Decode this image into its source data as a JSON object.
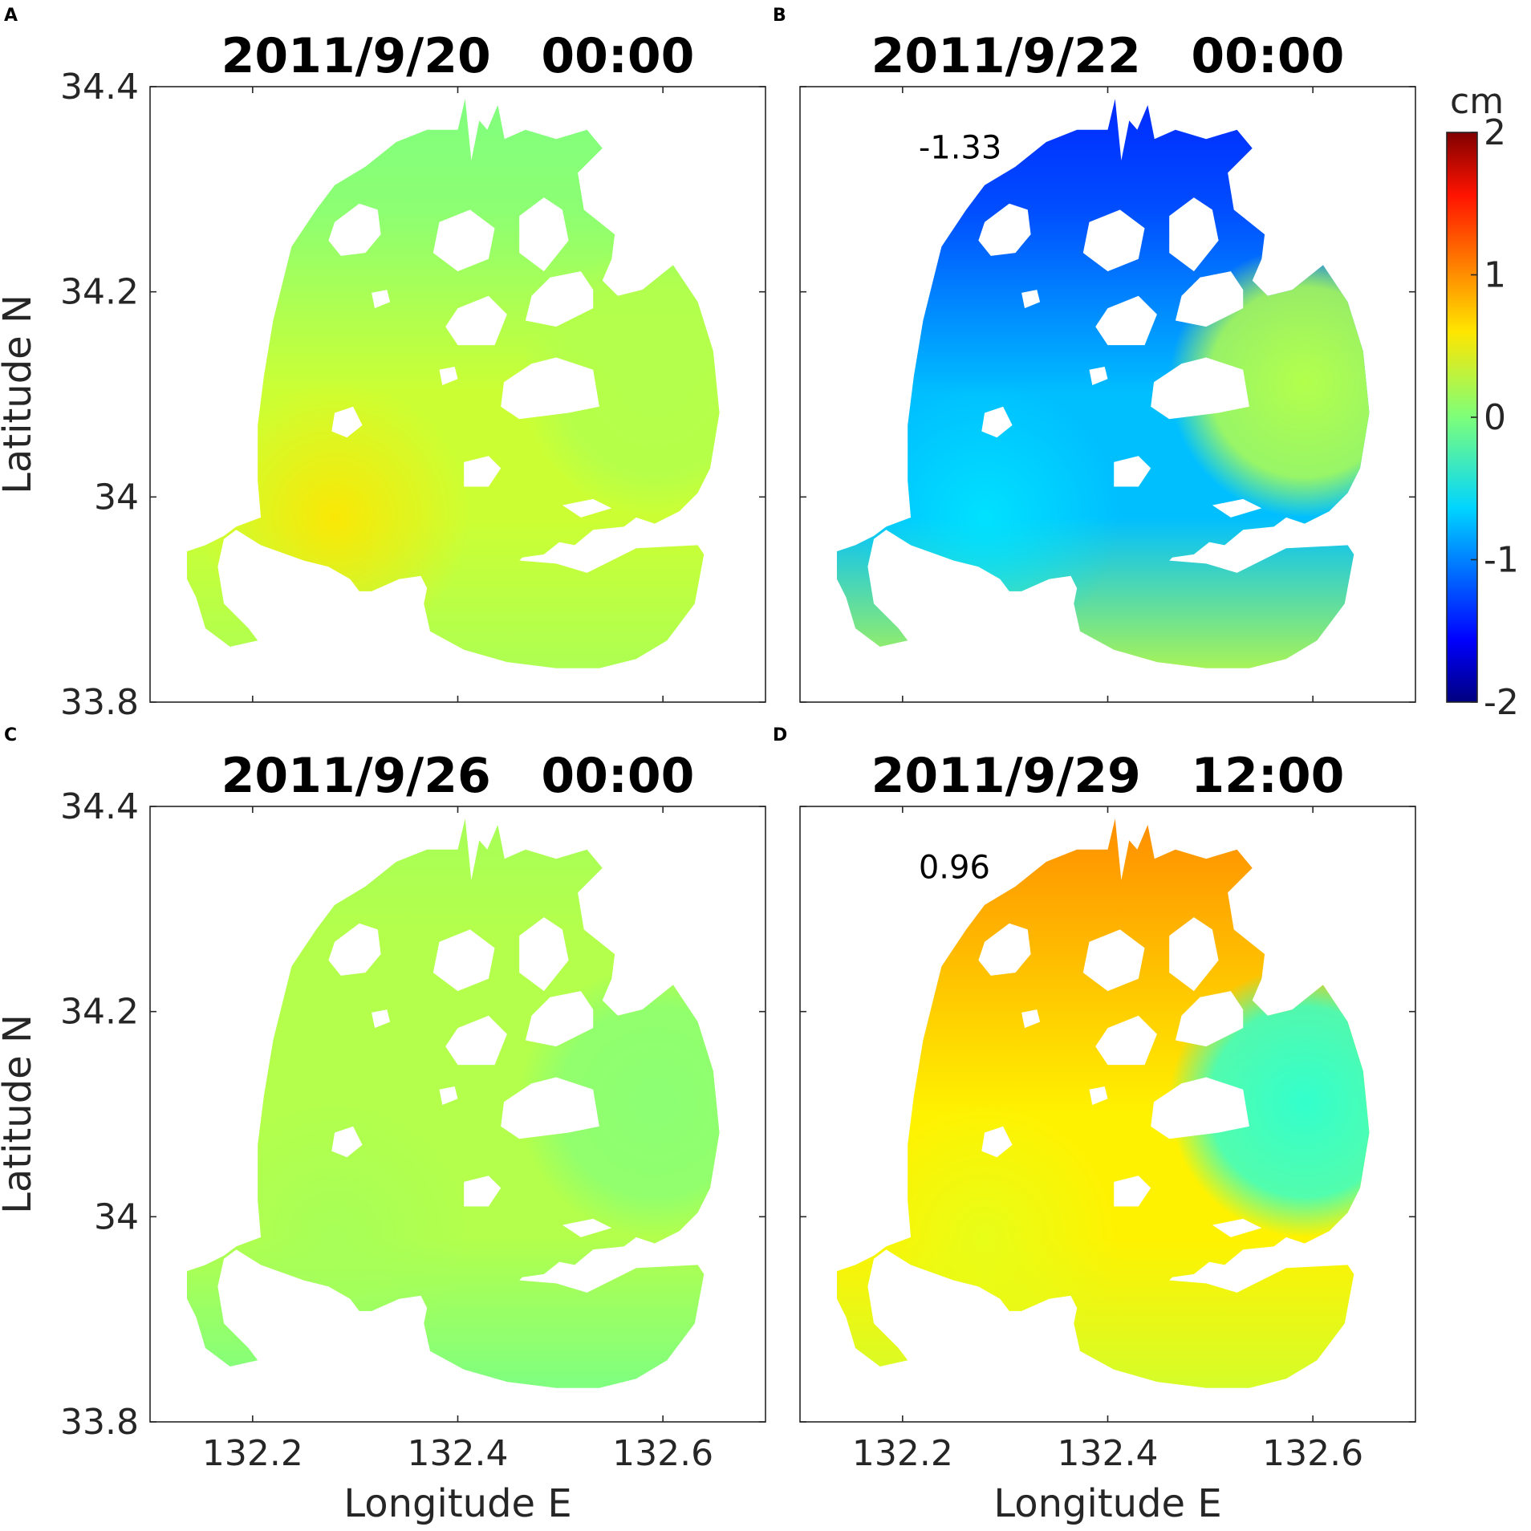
{
  "chart_data": {
    "type": "heatmap",
    "colorbar": {
      "unit": "cm",
      "range": [
        -2,
        2
      ],
      "ticks": [
        2,
        1,
        0,
        -1,
        -2
      ],
      "tick_labels": [
        "2",
        "1",
        "0",
        "-1",
        "-2"
      ],
      "colormap": "jet"
    },
    "x_axis": {
      "label": "Longitude E",
      "range": [
        132.1,
        132.7
      ],
      "ticks": [
        132.2,
        132.4,
        132.6
      ],
      "tick_labels": [
        "132.2",
        "132.4",
        "132.6"
      ]
    },
    "y_axis": {
      "label": "Latitude N",
      "range": [
        33.8,
        34.4
      ],
      "ticks": [
        34.4,
        34.2,
        34.0,
        33.8
      ],
      "tick_labels": [
        "34.4",
        "34.2",
        "34",
        "33.8"
      ]
    },
    "panels": [
      {
        "letter": "A",
        "title": "2011/9/20   00:00",
        "annotation": "",
        "field": {
          "north_top": 0.0,
          "north": 0.05,
          "centre": 0.3,
          "southwest": 0.6,
          "east": 0.2,
          "south": 0.15
        }
      },
      {
        "letter": "B",
        "title": "2011/9/22   00:00",
        "annotation": "-1.33",
        "annotation_pos": [
          132.2,
          34.33
        ],
        "field": {
          "north_top": -1.35,
          "north": -1.2,
          "centre": -0.75,
          "southwest": -0.6,
          "east": 0.2,
          "south": 0.3
        }
      },
      {
        "letter": "C",
        "title": "2011/9/26   00:00",
        "annotation": "",
        "field": {
          "north_top": 0.15,
          "north": 0.2,
          "centre": 0.2,
          "southwest": 0.15,
          "east": 0.05,
          "south": -0.05
        }
      },
      {
        "letter": "D",
        "title": "2011/9/29   12:00",
        "annotation": "0.96",
        "annotation_pos": [
          132.2,
          34.33
        ],
        "field": {
          "north_top": 0.96,
          "north": 0.8,
          "centre": 0.55,
          "southwest": 0.4,
          "east": -0.3,
          "south": 0.3
        }
      }
    ]
  }
}
